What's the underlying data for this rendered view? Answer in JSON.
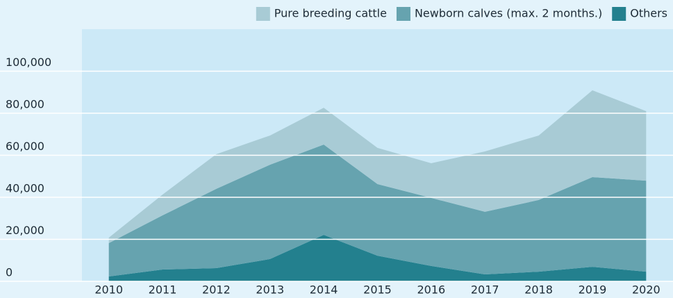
{
  "chart_data": {
    "type": "stacked_area",
    "categories": [
      "2010",
      "2011",
      "2012",
      "2013",
      "2014",
      "2015",
      "2016",
      "2017",
      "2018",
      "2019",
      "2020"
    ],
    "series": [
      {
        "name": "Others",
        "color": "#23808e",
        "values": [
          2300,
          5600,
          6300,
          10600,
          22100,
          12200,
          7300,
          3300,
          4600,
          6900,
          4600
        ]
      },
      {
        "name": "Newborn calves (max. 2 months.)",
        "color": "#66a3af",
        "values": [
          15900,
          25800,
          37700,
          44900,
          43000,
          34100,
          32400,
          29800,
          34100,
          42700,
          43300
        ]
      },
      {
        "name": "Pure breeding cattle",
        "color": "#a8cbd5",
        "values": [
          2600,
          9900,
          16500,
          13900,
          17500,
          17200,
          16500,
          28700,
          30700,
          41300,
          33100
        ]
      }
    ],
    "ylim": [
      0,
      120000
    ],
    "yticks": [
      0,
      {
        "value": 20000,
        "label": "20,000"
      },
      {
        "value": 40000,
        "label": "40,000"
      },
      {
        "value": 60000,
        "label": "60,000"
      },
      {
        "value": 80000,
        "label": "80,000"
      },
      {
        "value": 100000,
        "label": "100,000"
      }
    ],
    "grid": true
  }
}
